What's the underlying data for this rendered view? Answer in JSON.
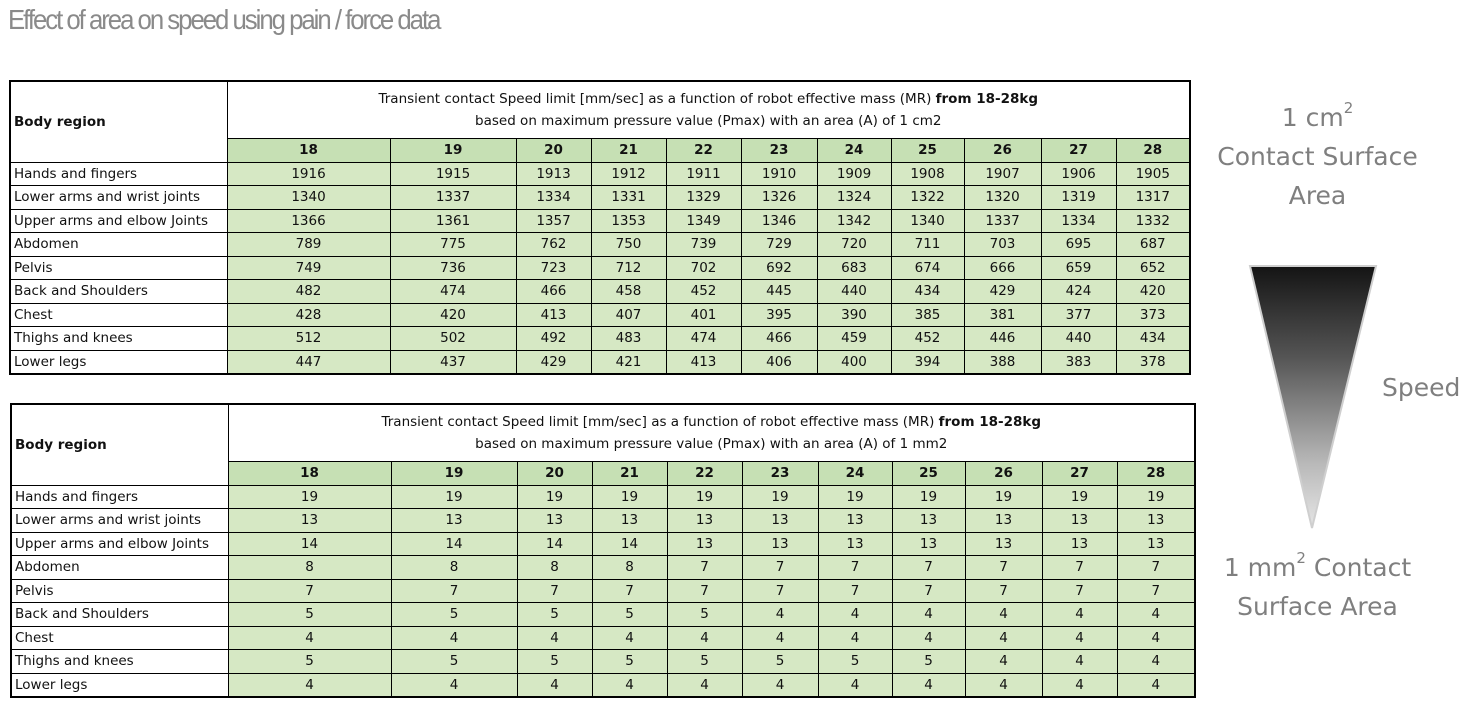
{
  "title": "Effect of area on speed using pain / force data",
  "masses": [
    "18",
    "19",
    "20",
    "21",
    "22",
    "23",
    "24",
    "25",
    "26",
    "27",
    "28"
  ],
  "tables": [
    {
      "region_header": "Body region",
      "desc_line1_pre": "Transient contact Speed limit [mm/sec] as a function of robot effective mass (MR)",
      "desc_line1_bold": "from 18-28kg",
      "desc_line2": "based on maximum pressure value (Pmax) with an area (A) of 1 cm2",
      "rows": [
        {
          "region": "Hands and fingers",
          "values": [
            "1916",
            "1915",
            "1913",
            "1912",
            "1911",
            "1910",
            "1909",
            "1908",
            "1907",
            "1906",
            "1905"
          ]
        },
        {
          "region": "Lower arms and wrist joints",
          "values": [
            "1340",
            "1337",
            "1334",
            "1331",
            "1329",
            "1326",
            "1324",
            "1322",
            "1320",
            "1319",
            "1317"
          ]
        },
        {
          "region": "Upper arms and elbow Joints",
          "values": [
            "1366",
            "1361",
            "1357",
            "1353",
            "1349",
            "1346",
            "1342",
            "1340",
            "1337",
            "1334",
            "1332"
          ]
        },
        {
          "region": "Abdomen",
          "values": [
            "789",
            "775",
            "762",
            "750",
            "739",
            "729",
            "720",
            "711",
            "703",
            "695",
            "687"
          ]
        },
        {
          "region": "Pelvis",
          "values": [
            "749",
            "736",
            "723",
            "712",
            "702",
            "692",
            "683",
            "674",
            "666",
            "659",
            "652"
          ]
        },
        {
          "region": "Back and Shoulders",
          "values": [
            "482",
            "474",
            "466",
            "458",
            "452",
            "445",
            "440",
            "434",
            "429",
            "424",
            "420"
          ]
        },
        {
          "region": "Chest",
          "values": [
            "428",
            "420",
            "413",
            "407",
            "401",
            "395",
            "390",
            "385",
            "381",
            "377",
            "373"
          ]
        },
        {
          "region": "Thighs and knees",
          "values": [
            "512",
            "502",
            "492",
            "483",
            "474",
            "466",
            "459",
            "452",
            "446",
            "440",
            "434"
          ]
        },
        {
          "region": "Lower legs",
          "values": [
            "447",
            "437",
            "429",
            "421",
            "413",
            "406",
            "400",
            "394",
            "388",
            "383",
            "378"
          ]
        }
      ]
    },
    {
      "region_header": "Body region",
      "desc_line1_pre": "Transient contact Speed limit [mm/sec] as a function of robot effective mass (MR)",
      "desc_line1_bold": "from 18-28kg",
      "desc_line2": "based on maximum pressure value (Pmax) with an area (A) of 1 mm2",
      "rows": [
        {
          "region": "Hands and fingers",
          "values": [
            "19",
            "19",
            "19",
            "19",
            "19",
            "19",
            "19",
            "19",
            "19",
            "19",
            "19"
          ]
        },
        {
          "region": "Lower arms and wrist joints",
          "values": [
            "13",
            "13",
            "13",
            "13",
            "13",
            "13",
            "13",
            "13",
            "13",
            "13",
            "13"
          ]
        },
        {
          "region": "Upper arms and elbow Joints",
          "values": [
            "14",
            "14",
            "14",
            "14",
            "13",
            "13",
            "13",
            "13",
            "13",
            "13",
            "13"
          ]
        },
        {
          "region": "Abdomen",
          "values": [
            "8",
            "8",
            "8",
            "8",
            "7",
            "7",
            "7",
            "7",
            "7",
            "7",
            "7"
          ]
        },
        {
          "region": "Pelvis",
          "values": [
            "7",
            "7",
            "7",
            "7",
            "7",
            "7",
            "7",
            "7",
            "7",
            "7",
            "7"
          ]
        },
        {
          "region": "Back and Shoulders",
          "values": [
            "5",
            "5",
            "5",
            "5",
            "5",
            "4",
            "4",
            "4",
            "4",
            "4",
            "4"
          ]
        },
        {
          "region": "Chest",
          "values": [
            "4",
            "4",
            "4",
            "4",
            "4",
            "4",
            "4",
            "4",
            "4",
            "4",
            "4"
          ]
        },
        {
          "region": "Thighs and knees",
          "values": [
            "5",
            "5",
            "5",
            "5",
            "5",
            "5",
            "5",
            "5",
            "4",
            "4",
            "4"
          ]
        },
        {
          "region": "Lower legs",
          "values": [
            "4",
            "4",
            "4",
            "4",
            "4",
            "4",
            "4",
            "4",
            "4",
            "4",
            "4"
          ]
        }
      ]
    }
  ],
  "side": {
    "top_unit": "1 cm",
    "top_sup": "2",
    "top_line2": "Contact Surface",
    "top_line3": "Area",
    "speed": "Speed",
    "bottom_unit": "1 mm",
    "bottom_sup": "2",
    "bottom_line1_rest": " Contact",
    "bottom_line2": "Surface Area"
  },
  "colors": {
    "cell_green": "#d6e8c4",
    "header_green": "#c6e0b4",
    "label_grey": "#7f7f7f",
    "triangle_top": "#1a1a1a",
    "triangle_bottom": "#e0e0e0"
  }
}
